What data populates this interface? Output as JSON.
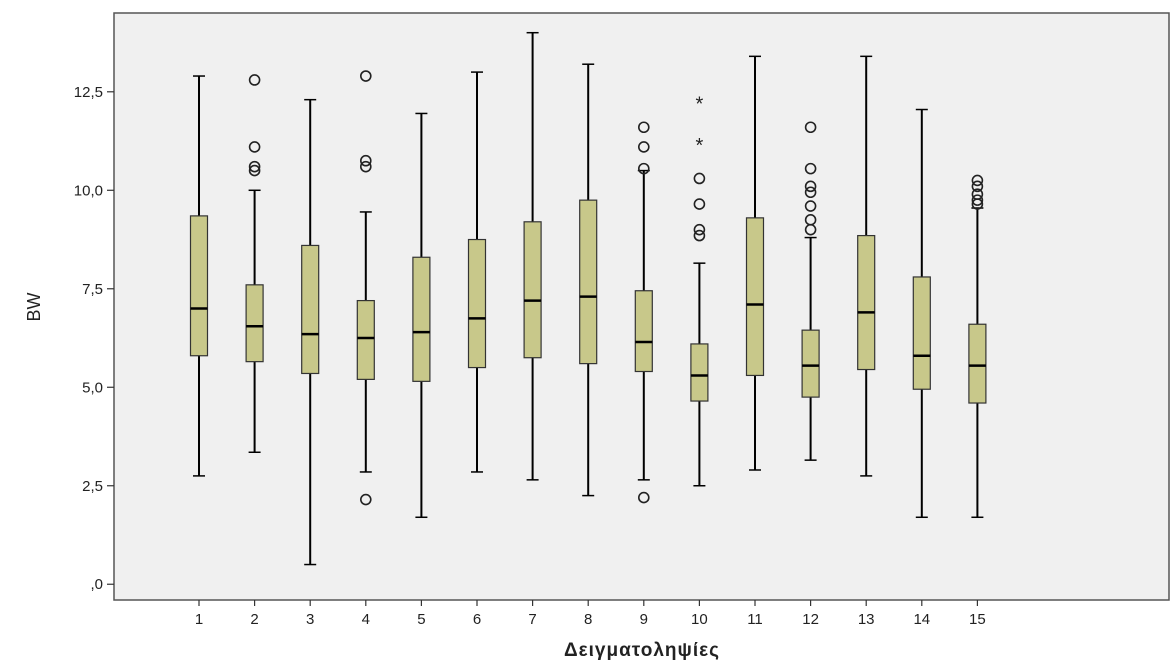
{
  "chart_data": {
    "type": "boxplot",
    "xlabel": "Δειγματοληψίες",
    "ylabel": "BW",
    "ylim": [
      -0.4,
      14.5
    ],
    "yticks": [
      0,
      2.5,
      5.0,
      7.5,
      10.0,
      12.5
    ],
    "ytick_labels": [
      ",0",
      "2,5",
      "5,0",
      "7,5",
      "10,0",
      "12,5"
    ],
    "grid": false,
    "colors": {
      "box_fill": "#c8c88a",
      "plot_bg": "#f0f0f0",
      "line": "#000000"
    },
    "categories": [
      "1",
      "2",
      "3",
      "4",
      "5",
      "6",
      "7",
      "8",
      "9",
      "10",
      "11",
      "12",
      "13",
      "14",
      "15"
    ],
    "boxes": [
      {
        "whisker_low": 2.75,
        "q1": 5.8,
        "median": 7.0,
        "q3": 9.35,
        "whisker_high": 12.9,
        "outliers": [],
        "extremes": []
      },
      {
        "whisker_low": 3.35,
        "q1": 5.65,
        "median": 6.55,
        "q3": 7.6,
        "whisker_high": 10.0,
        "outliers": [
          12.8,
          11.1,
          10.6,
          10.5
        ],
        "extremes": []
      },
      {
        "whisker_low": 0.5,
        "q1": 5.35,
        "median": 6.35,
        "q3": 8.6,
        "whisker_high": 12.3,
        "outliers": [],
        "extremes": []
      },
      {
        "whisker_low": 2.85,
        "q1": 5.2,
        "median": 6.25,
        "q3": 7.2,
        "whisker_high": 9.45,
        "outliers": [
          12.9,
          10.75,
          10.6,
          2.15
        ],
        "extremes": []
      },
      {
        "whisker_low": 1.7,
        "q1": 5.15,
        "median": 6.4,
        "q3": 8.3,
        "whisker_high": 11.95,
        "outliers": [],
        "extremes": []
      },
      {
        "whisker_low": 2.85,
        "q1": 5.5,
        "median": 6.75,
        "q3": 8.75,
        "whisker_high": 13.0,
        "outliers": [],
        "extremes": []
      },
      {
        "whisker_low": 2.65,
        "q1": 5.75,
        "median": 7.2,
        "q3": 9.2,
        "whisker_high": 14.0,
        "outliers": [],
        "extremes": []
      },
      {
        "whisker_low": 2.25,
        "q1": 5.6,
        "median": 7.3,
        "q3": 9.75,
        "whisker_high": 13.2,
        "outliers": [],
        "extremes": []
      },
      {
        "whisker_low": 2.65,
        "q1": 5.4,
        "median": 6.15,
        "q3": 7.45,
        "whisker_high": 10.5,
        "outliers": [
          11.6,
          11.1,
          10.55,
          2.2
        ],
        "extremes": []
      },
      {
        "whisker_low": 2.5,
        "q1": 4.65,
        "median": 5.3,
        "q3": 6.1,
        "whisker_high": 8.15,
        "outliers": [
          10.3,
          9.65,
          9.0,
          8.85
        ],
        "extremes": [
          12.2,
          11.15
        ]
      },
      {
        "whisker_low": 2.9,
        "q1": 5.3,
        "median": 7.1,
        "q3": 9.3,
        "whisker_high": 13.4,
        "outliers": [],
        "extremes": []
      },
      {
        "whisker_low": 3.15,
        "q1": 4.75,
        "median": 5.55,
        "q3": 6.45,
        "whisker_high": 8.8,
        "outliers": [
          11.6,
          10.55,
          10.1,
          9.95,
          9.6,
          9.25,
          9.0
        ],
        "extremes": []
      },
      {
        "whisker_low": 2.75,
        "q1": 5.45,
        "median": 6.9,
        "q3": 8.85,
        "whisker_high": 13.4,
        "outliers": [],
        "extremes": []
      },
      {
        "whisker_low": 1.7,
        "q1": 4.95,
        "median": 5.8,
        "q3": 7.8,
        "whisker_high": 12.05,
        "outliers": [],
        "extremes": []
      },
      {
        "whisker_low": 1.7,
        "q1": 4.6,
        "median": 5.55,
        "q3": 6.6,
        "whisker_high": 9.55,
        "outliers": [
          10.25,
          10.1,
          9.9,
          9.75,
          9.65
        ],
        "extremes": []
      }
    ]
  }
}
